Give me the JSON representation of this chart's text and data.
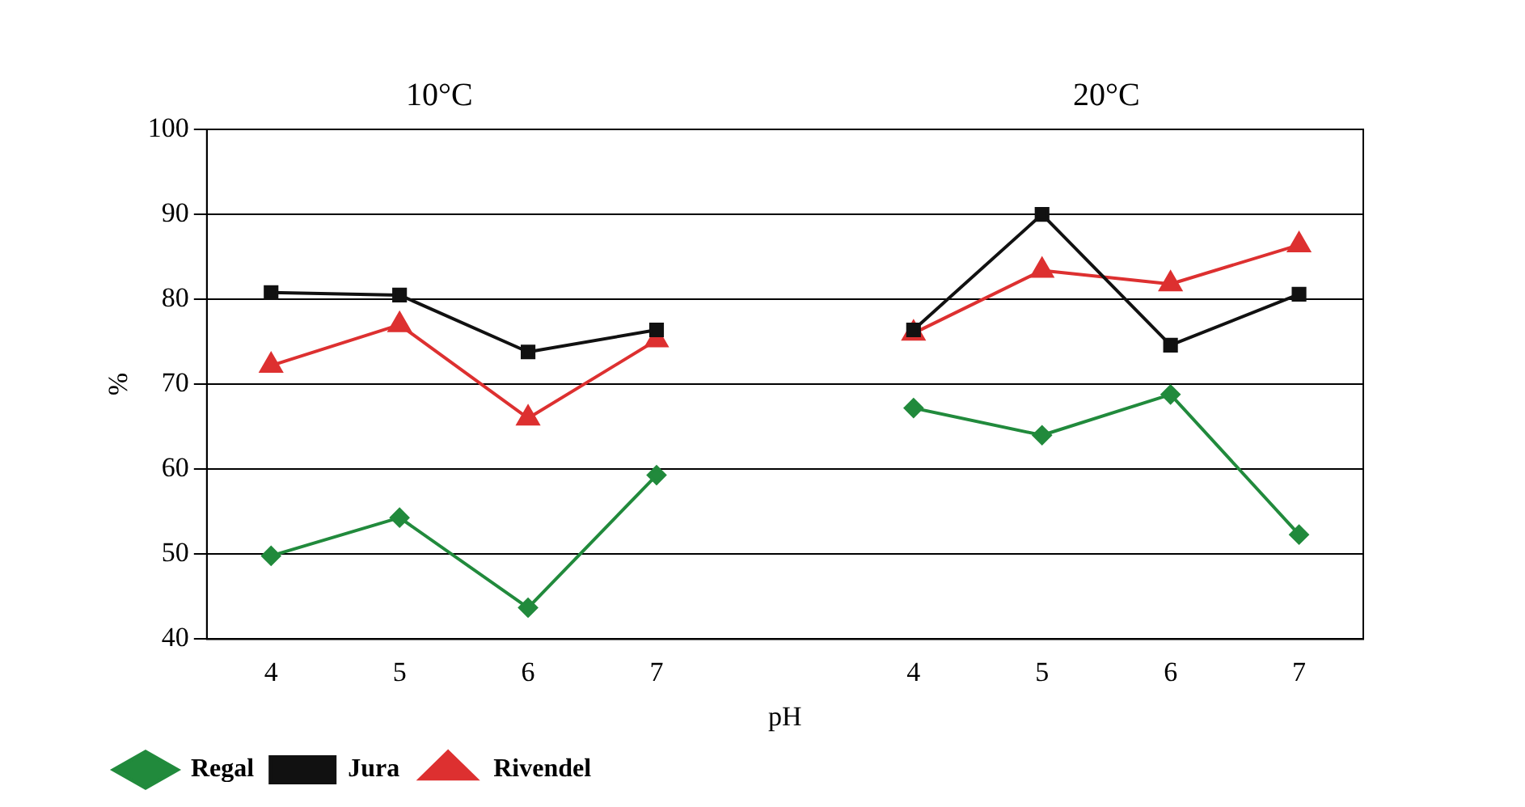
{
  "chart_data": {
    "type": "line",
    "xlabel": "pH",
    "ylabel": "%",
    "categories": [
      "4",
      "5",
      "6",
      "7",
      null,
      "4",
      "5",
      "6",
      "7"
    ],
    "series": [
      {
        "name": "Regal",
        "color": "#218a3c",
        "marker": "diamond",
        "values": [
          49.8,
          54.3,
          43.7,
          59.3,
          null,
          67.2,
          64.0,
          68.8,
          52.3
        ]
      },
      {
        "name": "Jura",
        "color": "#111111",
        "marker": "square",
        "values": [
          80.8,
          80.5,
          73.8,
          76.4,
          null,
          76.4,
          90.0,
          74.6,
          80.6
        ]
      },
      {
        "name": "Rivendel",
        "color": "#dd3030",
        "marker": "triangle",
        "values": [
          72.2,
          77.0,
          66.0,
          75.2,
          null,
          76.0,
          83.4,
          81.8,
          86.4
        ]
      }
    ],
    "annotations": [
      "10°C",
      "20°C"
    ],
    "ylim": [
      40,
      100
    ],
    "yticks": [
      40,
      50,
      60,
      70,
      80,
      90,
      100
    ],
    "grid": "y",
    "legend": "bottom left"
  }
}
